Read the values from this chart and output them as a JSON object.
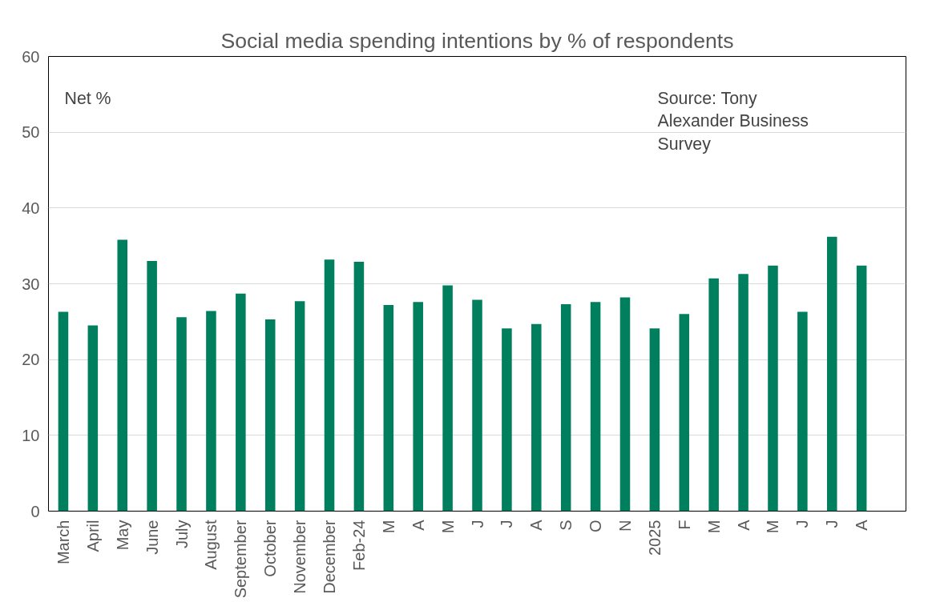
{
  "chart_data": {
    "type": "bar",
    "title": "Social media spending intentions by % of respondents",
    "categories": [
      "March",
      "April",
      "May",
      "June",
      "July",
      "August",
      "September",
      "October",
      "November",
      "December",
      "Feb-24",
      "M",
      "A",
      "M",
      "J",
      "J",
      "A",
      "S",
      "O",
      "N",
      "2025",
      "F",
      "M",
      "A",
      "M",
      "J",
      "J",
      "A",
      null
    ],
    "values": [
      26.3,
      24.5,
      35.8,
      33.0,
      25.6,
      26.4,
      28.7,
      25.3,
      27.7,
      33.2,
      32.9,
      27.2,
      27.6,
      29.8,
      27.9,
      24.1,
      24.7,
      27.3,
      27.6,
      28.2,
      24.1,
      26.0,
      30.7,
      31.3,
      32.4,
      26.3,
      36.2,
      32.4,
      null
    ],
    "color": "#007f5f",
    "ylim": [
      0,
      60
    ],
    "yticks": [
      0,
      10,
      20,
      30,
      40,
      50,
      60
    ],
    "grid": "y",
    "annotations": [
      "Net %",
      "Source: Tony Alexander Business Survey"
    ]
  }
}
